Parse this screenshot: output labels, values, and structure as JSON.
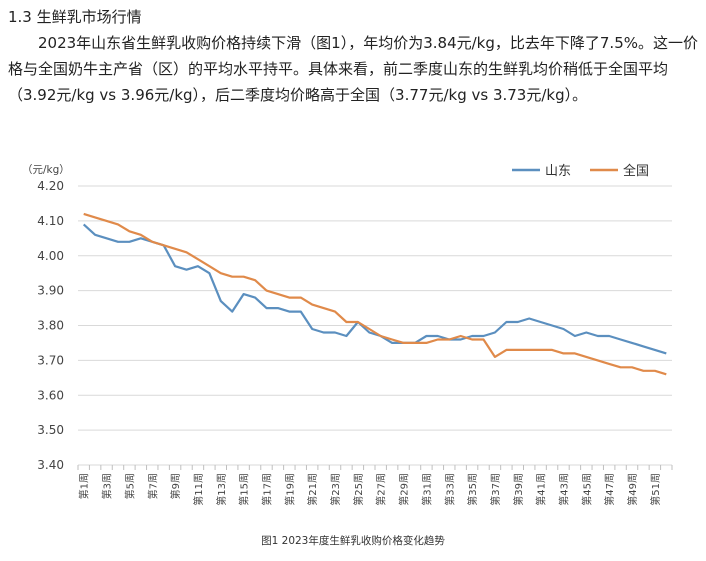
{
  "section_heading": "1.3 生鲜乳市场行情",
  "paragraph": "2023年山东省生鲜乳收购价格持续下滑（图1），年均价为3.84元/kg，比去年下降了7.5%。这一价格与全国奶牛主产省（区）的平均水平持平。具体来看，前二季度山东的生鲜乳均价稍低于全国平均（3.92元/kg vs 3.96元/kg），后二季度均价略高于全国（3.77元/kg vs 3.73元/kg）。",
  "caption": "图1 2023年度生鲜乳收购价格变化趋势",
  "chart_data": {
    "type": "line",
    "unit_label": "（元/kg）",
    "ylim": [
      3.4,
      4.2
    ],
    "yticks": [
      "4.20",
      "4.10",
      "4.00",
      "3.90",
      "3.80",
      "3.70",
      "3.60",
      "3.50",
      "3.40"
    ],
    "x_tick_labels": [
      "第1周",
      "第3周",
      "第5周",
      "第7周",
      "第9周",
      "第11周",
      "第13周",
      "第15周",
      "第17周",
      "第19周",
      "第21周",
      "第23周",
      "第25周",
      "第27周",
      "第29周",
      "第31周",
      "第33周",
      "第35周",
      "第37周",
      "第39周",
      "第41周",
      "第43周",
      "第45周",
      "第47周",
      "第49周",
      "第51周"
    ],
    "x": [
      1,
      2,
      3,
      4,
      5,
      6,
      7,
      8,
      9,
      10,
      11,
      12,
      13,
      14,
      15,
      16,
      17,
      18,
      19,
      20,
      21,
      22,
      23,
      24,
      25,
      26,
      27,
      28,
      29,
      30,
      31,
      32,
      33,
      34,
      35,
      36,
      37,
      38,
      39,
      40,
      41,
      42,
      43,
      44,
      45,
      46,
      47,
      48,
      49,
      50,
      51,
      52
    ],
    "grid": true,
    "legend_position": "top-right",
    "series": [
      {
        "name": "山东",
        "color": "#5b8fbf",
        "values": [
          4.09,
          4.06,
          4.05,
          4.04,
          4.04,
          4.05,
          4.04,
          4.03,
          3.97,
          3.96,
          3.97,
          3.95,
          3.87,
          3.84,
          3.89,
          3.88,
          3.85,
          3.85,
          3.84,
          3.84,
          3.79,
          3.78,
          3.78,
          3.77,
          3.81,
          3.78,
          3.77,
          3.75,
          3.75,
          3.75,
          3.77,
          3.77,
          3.76,
          3.76,
          3.77,
          3.77,
          3.78,
          3.81,
          3.81,
          3.82,
          3.81,
          3.8,
          3.79,
          3.77,
          3.78,
          3.77,
          3.77,
          3.76,
          3.75,
          3.74,
          3.73,
          3.72
        ]
      },
      {
        "name": "全国",
        "color": "#e08a4a",
        "values": [
          4.12,
          4.11,
          4.1,
          4.09,
          4.07,
          4.06,
          4.04,
          4.03,
          4.02,
          4.01,
          3.99,
          3.97,
          3.95,
          3.94,
          3.94,
          3.93,
          3.9,
          3.89,
          3.88,
          3.88,
          3.86,
          3.85,
          3.84,
          3.81,
          3.81,
          3.79,
          3.77,
          3.76,
          3.75,
          3.75,
          3.75,
          3.76,
          3.76,
          3.77,
          3.76,
          3.76,
          3.71,
          3.73,
          3.73,
          3.73,
          3.73,
          3.73,
          3.72,
          3.72,
          3.71,
          3.7,
          3.69,
          3.68,
          3.68,
          3.67,
          3.67,
          3.66
        ]
      }
    ]
  }
}
